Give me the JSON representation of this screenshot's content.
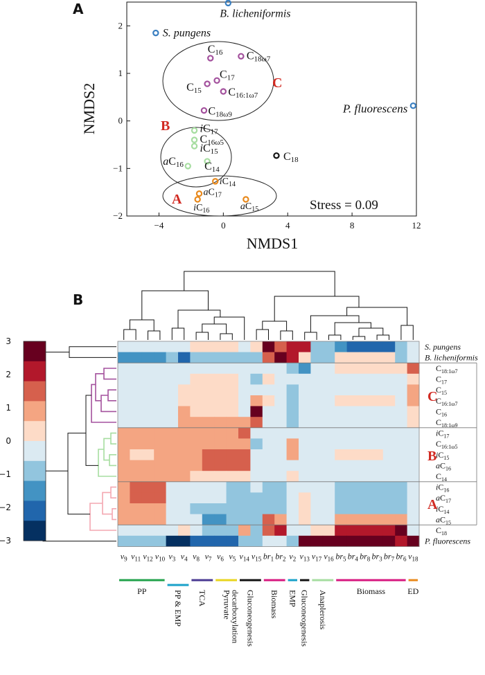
{
  "panel_a_letter": "A",
  "panel_b_letter": "B",
  "chart_data": [
    {
      "type": "scatter",
      "title": "",
      "xlabel": "NMDS1",
      "ylabel": "NMDS2",
      "xlim": [
        -6,
        12
      ],
      "ylim": [
        -2,
        2.5
      ],
      "xticks": [
        "−4",
        "0",
        "4",
        "8",
        "12"
      ],
      "yticks": [
        "2",
        "1",
        "0",
        "−1",
        "−2"
      ],
      "annotation": "Stress = 0.09",
      "group_letters": [
        "A",
        "B",
        "C"
      ],
      "colors": {
        "purple": "#a3519d",
        "green": "#a6dda0",
        "orange": "#e8891c",
        "blue": "#3a7fc1",
        "black": "#111111",
        "red": "#d12a22"
      },
      "points": [
        {
          "label": "B. licheniformis",
          "italic": true,
          "x": 0.3,
          "y": 2.48,
          "color": "blue"
        },
        {
          "label": "S. pungens",
          "italic": true,
          "x": -4.2,
          "y": 1.85,
          "color": "blue"
        },
        {
          "label": "P. fluorescens",
          "italic": true,
          "x": 11.8,
          "y": 0.32,
          "color": "blue"
        },
        {
          "label": "C16",
          "x": -0.8,
          "y": 1.32,
          "color": "purple"
        },
        {
          "label": "C18ω7",
          "x": 1.1,
          "y": 1.36,
          "color": "purple"
        },
        {
          "label": "C17",
          "x": -0.4,
          "y": 0.85,
          "color": "purple"
        },
        {
          "label": "C15",
          "x": -1.0,
          "y": 0.78,
          "color": "purple"
        },
        {
          "label": "C16:1ω7",
          "x": 0.0,
          "y": 0.62,
          "color": "purple"
        },
        {
          "label": "C18ω9",
          "x": -1.2,
          "y": 0.22,
          "color": "purple"
        },
        {
          "label": "iC17",
          "x": -1.8,
          "y": -0.2,
          "color": "green"
        },
        {
          "label": "C16ω5",
          "x": -1.8,
          "y": -0.4,
          "color": "green"
        },
        {
          "label": "iC15",
          "x": -1.8,
          "y": -0.53,
          "color": "green"
        },
        {
          "label": "C14",
          "x": -1.0,
          "y": -0.85,
          "color": "green"
        },
        {
          "label": "aC16",
          "x": -2.2,
          "y": -0.95,
          "color": "green"
        },
        {
          "label": "C18",
          "x": 3.3,
          "y": -0.73,
          "color": "black"
        },
        {
          "label": "iC14",
          "x": -0.5,
          "y": -1.27,
          "color": "orange"
        },
        {
          "label": "aC17",
          "x": -1.5,
          "y": -1.53,
          "color": "orange"
        },
        {
          "label": "iC16",
          "x": -1.6,
          "y": -1.65,
          "color": "orange"
        },
        {
          "label": "aC15",
          "x": 1.4,
          "y": -1.65,
          "color": "orange"
        }
      ]
    },
    {
      "type": "heatmap",
      "colorbar_ticks": [
        "3",
        "2",
        "1",
        "0",
        "−1",
        "−2",
        "−3"
      ],
      "palette": [
        "#053061",
        "#2166ac",
        "#4393c3",
        "#92c5de",
        "#dbeaf2",
        "#fddbc7",
        "#f4a582",
        "#d6604d",
        "#b2182b",
        "#67001f"
      ],
      "columns": [
        "v9",
        "v11",
        "v12",
        "v10",
        "v3",
        "v4",
        "v8",
        "v7",
        "v6",
        "v5",
        "v14",
        "v15",
        "br1",
        "br2",
        "v2",
        "v13",
        "v17",
        "v16",
        "br5",
        "br4",
        "br8",
        "br3",
        "br7",
        "br6",
        "v18"
      ],
      "rows": [
        "S. pungens",
        "B. licheniformis",
        "C18:1ω7",
        "C17",
        "C15",
        "C16:1ω7",
        "C16",
        "C18:1ω9",
        "iC17",
        "C16:1ω5",
        "iC15",
        "aC16",
        "C14",
        "iC16",
        "aC17",
        "iC14",
        "aC15",
        "C18",
        "P. fluorescens"
      ],
      "row_groups": [
        "C",
        "B",
        "A"
      ],
      "values": [
        [
          4,
          4,
          4,
          4,
          4,
          4,
          5,
          5,
          5,
          5,
          4,
          5,
          9,
          7,
          8,
          8,
          3,
          3,
          2,
          1,
          1,
          1,
          1,
          3,
          4
        ],
        [
          2,
          2,
          2,
          2,
          3,
          1,
          3,
          3,
          3,
          3,
          3,
          3,
          7,
          9,
          8,
          5,
          3,
          3,
          5,
          5,
          5,
          5,
          5,
          3,
          4
        ],
        [
          4,
          4,
          4,
          4,
          4,
          4,
          4,
          4,
          4,
          4,
          4,
          4,
          4,
          4,
          3,
          2,
          4,
          4,
          5,
          5,
          5,
          5,
          5,
          5,
          7
        ],
        [
          4,
          4,
          4,
          4,
          4,
          4,
          5,
          5,
          5,
          5,
          4,
          3,
          5,
          4,
          4,
          4,
          4,
          4,
          4,
          4,
          4,
          4,
          4,
          4,
          5
        ],
        [
          4,
          4,
          4,
          4,
          4,
          5,
          5,
          5,
          5,
          5,
          4,
          4,
          4,
          4,
          3,
          4,
          4,
          4,
          4,
          4,
          4,
          4,
          4,
          4,
          6
        ],
        [
          4,
          4,
          4,
          4,
          4,
          5,
          5,
          5,
          5,
          5,
          4,
          6,
          5,
          4,
          3,
          4,
          4,
          4,
          5,
          5,
          5,
          5,
          5,
          4,
          6
        ],
        [
          4,
          4,
          4,
          4,
          4,
          6,
          5,
          5,
          5,
          5,
          4,
          9,
          4,
          4,
          3,
          4,
          4,
          4,
          4,
          4,
          4,
          4,
          4,
          4,
          5
        ],
        [
          4,
          4,
          4,
          4,
          4,
          6,
          6,
          6,
          6,
          6,
          6,
          7,
          4,
          4,
          3,
          4,
          4,
          4,
          4,
          4,
          4,
          4,
          4,
          4,
          5
        ],
        [
          6,
          6,
          6,
          6,
          6,
          6,
          6,
          6,
          6,
          6,
          7,
          4,
          4,
          4,
          4,
          4,
          4,
          4,
          4,
          4,
          4,
          4,
          4,
          4,
          4
        ],
        [
          6,
          6,
          6,
          6,
          6,
          6,
          6,
          6,
          6,
          6,
          6,
          3,
          4,
          4,
          6,
          4,
          4,
          4,
          4,
          4,
          4,
          4,
          4,
          4,
          4
        ],
        [
          6,
          5,
          5,
          6,
          6,
          6,
          6,
          7,
          7,
          7,
          7,
          4,
          4,
          4,
          6,
          4,
          4,
          4,
          5,
          5,
          5,
          5,
          4,
          4,
          4
        ],
        [
          6,
          6,
          6,
          6,
          6,
          6,
          6,
          7,
          7,
          7,
          7,
          4,
          4,
          4,
          4,
          4,
          4,
          4,
          4,
          4,
          4,
          4,
          4,
          4,
          4
        ],
        [
          6,
          6,
          6,
          6,
          6,
          6,
          5,
          5,
          5,
          5,
          5,
          4,
          4,
          4,
          5,
          4,
          4,
          4,
          4,
          4,
          4,
          4,
          4,
          4,
          4
        ],
        [
          6,
          7,
          7,
          7,
          4,
          4,
          4,
          4,
          4,
          3,
          3,
          4,
          3,
          3,
          4,
          4,
          4,
          4,
          3,
          3,
          3,
          3,
          3,
          3,
          4
        ],
        [
          6,
          7,
          7,
          7,
          4,
          4,
          4,
          4,
          4,
          3,
          3,
          3,
          3,
          3,
          4,
          5,
          4,
          4,
          3,
          3,
          3,
          3,
          3,
          3,
          4
        ],
        [
          6,
          6,
          6,
          6,
          4,
          4,
          3,
          3,
          3,
          3,
          3,
          3,
          3,
          3,
          4,
          5,
          4,
          4,
          3,
          3,
          3,
          3,
          3,
          3,
          4
        ],
        [
          6,
          6,
          6,
          6,
          4,
          4,
          4,
          2,
          2,
          3,
          3,
          3,
          7,
          6,
          4,
          5,
          4,
          4,
          6,
          6,
          6,
          6,
          6,
          6,
          4
        ],
        [
          4,
          4,
          4,
          4,
          4,
          5,
          4,
          3,
          3,
          3,
          6,
          3,
          7,
          8,
          4,
          4,
          5,
          5,
          8,
          8,
          8,
          8,
          8,
          9,
          4
        ],
        [
          3,
          3,
          3,
          3,
          0,
          0,
          1,
          1,
          1,
          1,
          3,
          3,
          4,
          4,
          3,
          9,
          9,
          9,
          9,
          9,
          9,
          9,
          9,
          8,
          9
        ]
      ],
      "pathways": [
        {
          "label": "PP",
          "color": "#22a24b"
        },
        {
          "label": "PP & EMP",
          "color": "#19a1c9"
        },
        {
          "label": "TCA",
          "color": "#4a3a92"
        },
        {
          "label": "Pyruvate decarboxylation",
          "color": "#e8d51f"
        },
        {
          "label": "Gluconeogenesis",
          "color": "#111111"
        },
        {
          "label": "Biomass",
          "color": "#d7197f"
        },
        {
          "label": "EMP",
          "color": "#19a1c9"
        },
        {
          "label": "Gluconeogenesis",
          "color": "#111111"
        },
        {
          "label": "Anaplerosis",
          "color": "#a6dda0"
        },
        {
          "label": "Biomass",
          "color": "#d7197f"
        },
        {
          "label": "ED",
          "color": "#e8891c"
        }
      ]
    }
  ]
}
